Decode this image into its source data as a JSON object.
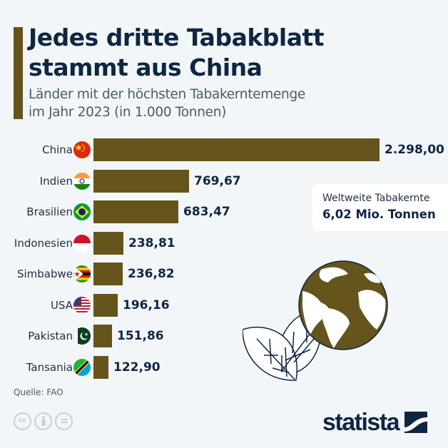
{
  "header": {
    "title_line1": "Jedes dritte Tabakblatt",
    "title_line2": "stammt aus China",
    "subtitle_line1": "Länder mit der höchsten Tabakerntemenge",
    "subtitle_line2": "im Jahr 2023 (in 1.000 Tonnen)"
  },
  "colors": {
    "bar": "#65541b",
    "title": "#0f2643",
    "background": "#f3f6f9"
  },
  "rows": [
    {
      "country": "China",
      "flag": "china-flag-icon",
      "value": 2298.0,
      "value_label": "2.298,00"
    },
    {
      "country": "Indien",
      "flag": "india-flag-icon",
      "value": 769.67,
      "value_label": "769,67"
    },
    {
      "country": "Brasilien",
      "flag": "brazil-flag-icon",
      "value": 683.47,
      "value_label": "683,47"
    },
    {
      "country": "Indonesien",
      "flag": "indonesia-flag-icon",
      "value": 238.81,
      "value_label": "238,81"
    },
    {
      "country": "Simbabwe",
      "flag": "zimbabwe-flag-icon",
      "value": 236.82,
      "value_label": "236,82"
    },
    {
      "country": "USA",
      "flag": "usa-flag-icon",
      "value": 196.16,
      "value_label": "196,16"
    },
    {
      "country": "Pakistan",
      "flag": "pakistan-flag-icon",
      "value": 151.86,
      "value_label": "151,86"
    },
    {
      "country": "Tansania",
      "flag": "tanzania-flag-icon",
      "value": 122.9,
      "value_label": "122,90"
    }
  ],
  "callout": {
    "label": "Weltweite Tabakernte",
    "value": "6,02 Mio. Tonnen"
  },
  "footer": {
    "source": "Quelle: FAO",
    "license_icons": [
      "cc-icon",
      "attribution-icon",
      "no-derivatives-icon"
    ],
    "brand": "statista"
  },
  "chart_data": {
    "type": "bar",
    "orientation": "horizontal",
    "title": "Jedes dritte Tabakblatt stammt aus China",
    "subtitle": "Länder mit der höchsten Tabakerntemenge im Jahr 2023 (in 1.000 Tonnen)",
    "categories": [
      "China",
      "Indien",
      "Brasilien",
      "Indonesien",
      "Simbabwe",
      "USA",
      "Pakistan",
      "Tansania"
    ],
    "values": [
      2298.0,
      769.67,
      683.47,
      238.81,
      236.82,
      196.16,
      151.86,
      122.9
    ],
    "unit": "1.000 Tonnen",
    "xlabel": "",
    "ylabel": "",
    "grid": false,
    "legend": null,
    "data_labels": true,
    "annotations": [
      "Weltweite Tabakernte 6,02 Mio. Tonnen"
    ],
    "source": "FAO"
  }
}
